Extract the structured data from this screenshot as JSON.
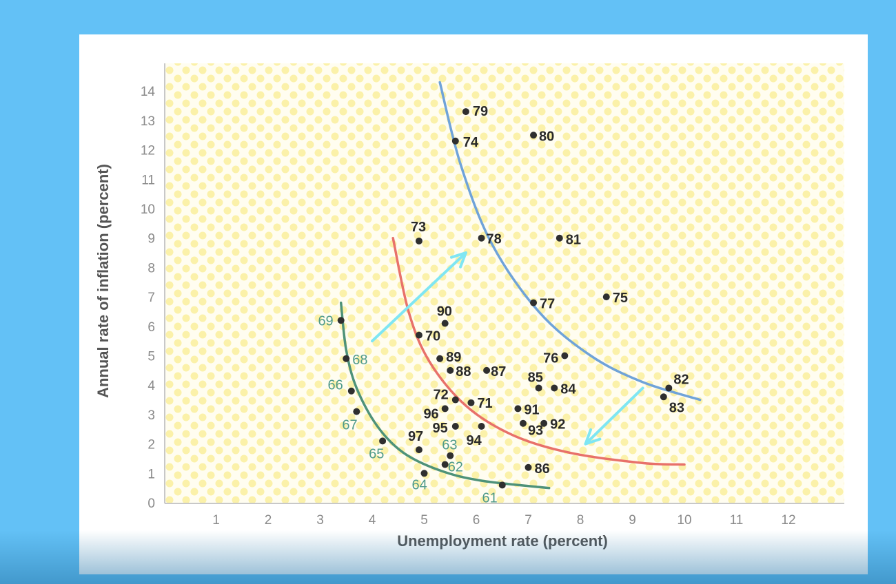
{
  "chart_data": {
    "type": "scatter",
    "xlabel": "Unemployment rate (percent)",
    "ylabel": "Annual rate of inflation (percent)",
    "xlim": [
      0,
      13
    ],
    "ylim": [
      0,
      15
    ],
    "x_ticks": [
      "1",
      "2",
      "3",
      "4",
      "5",
      "6",
      "7",
      "8",
      "9",
      "10",
      "11",
      "12"
    ],
    "y_ticks": [
      "0",
      "1",
      "2",
      "3",
      "4",
      "5",
      "6",
      "7",
      "8",
      "9",
      "10",
      "11",
      "12",
      "13",
      "14"
    ],
    "grid": false,
    "background": "dotted-yellow",
    "points": [
      {
        "label": "61",
        "x": 6.5,
        "y": 0.6,
        "style": "green"
      },
      {
        "label": "62",
        "x": 5.4,
        "y": 1.3,
        "style": "green"
      },
      {
        "label": "63",
        "x": 5.5,
        "y": 1.6,
        "style": "green"
      },
      {
        "label": "64",
        "x": 5.0,
        "y": 1.0,
        "style": "green"
      },
      {
        "label": "65",
        "x": 4.2,
        "y": 2.1,
        "style": "green"
      },
      {
        "label": "66",
        "x": 3.6,
        "y": 3.8,
        "style": "green"
      },
      {
        "label": "67",
        "x": 3.7,
        "y": 3.1,
        "style": "green"
      },
      {
        "label": "68",
        "x": 3.5,
        "y": 4.9,
        "style": "green"
      },
      {
        "label": "69",
        "x": 3.4,
        "y": 6.2,
        "style": "green"
      },
      {
        "label": "70",
        "x": 4.9,
        "y": 5.7,
        "style": "dark"
      },
      {
        "label": "71",
        "x": 5.9,
        "y": 3.4,
        "style": "dark"
      },
      {
        "label": "72",
        "x": 5.6,
        "y": 3.5,
        "style": "dark"
      },
      {
        "label": "73",
        "x": 4.9,
        "y": 8.9,
        "style": "dark"
      },
      {
        "label": "74",
        "x": 5.6,
        "y": 12.3,
        "style": "dark"
      },
      {
        "label": "75",
        "x": 8.5,
        "y": 7.0,
        "style": "dark"
      },
      {
        "label": "76",
        "x": 7.7,
        "y": 5.0,
        "style": "dark"
      },
      {
        "label": "77",
        "x": 7.1,
        "y": 6.8,
        "style": "dark"
      },
      {
        "label": "78",
        "x": 6.1,
        "y": 9.0,
        "style": "dark"
      },
      {
        "label": "79",
        "x": 5.8,
        "y": 13.3,
        "style": "dark"
      },
      {
        "label": "80",
        "x": 7.1,
        "y": 12.5,
        "style": "dark"
      },
      {
        "label": "81",
        "x": 7.6,
        "y": 9.0,
        "style": "dark"
      },
      {
        "label": "82",
        "x": 9.7,
        "y": 3.9,
        "style": "dark"
      },
      {
        "label": "83",
        "x": 9.6,
        "y": 3.6,
        "style": "dark"
      },
      {
        "label": "84",
        "x": 7.5,
        "y": 3.9,
        "style": "dark"
      },
      {
        "label": "85",
        "x": 7.2,
        "y": 3.9,
        "style": "dark"
      },
      {
        "label": "86",
        "x": 7.0,
        "y": 1.2,
        "style": "dark"
      },
      {
        "label": "87",
        "x": 6.2,
        "y": 4.5,
        "style": "dark"
      },
      {
        "label": "88",
        "x": 5.5,
        "y": 4.5,
        "style": "dark"
      },
      {
        "label": "89",
        "x": 5.3,
        "y": 4.9,
        "style": "dark"
      },
      {
        "label": "90",
        "x": 5.4,
        "y": 6.1,
        "style": "dark"
      },
      {
        "label": "91",
        "x": 6.8,
        "y": 3.2,
        "style": "dark"
      },
      {
        "label": "92",
        "x": 7.3,
        "y": 2.7,
        "style": "dark"
      },
      {
        "label": "93",
        "x": 6.9,
        "y": 2.7,
        "style": "dark"
      },
      {
        "label": "94",
        "x": 6.1,
        "y": 2.6,
        "style": "dark"
      },
      {
        "label": "95",
        "x": 5.6,
        "y": 2.6,
        "style": "dark"
      },
      {
        "label": "96",
        "x": 5.4,
        "y": 3.2,
        "style": "dark"
      },
      {
        "label": "97",
        "x": 4.9,
        "y": 1.8,
        "style": "dark"
      }
    ],
    "curves": [
      {
        "color": "#4e9279",
        "points": [
          [
            3.4,
            6.8
          ],
          [
            3.5,
            5.2
          ],
          [
            3.7,
            3.9
          ],
          [
            4.1,
            2.6
          ],
          [
            4.6,
            1.7
          ],
          [
            5.3,
            1.1
          ],
          [
            6.1,
            0.75
          ],
          [
            7.4,
            0.5
          ]
        ]
      },
      {
        "color": "#e8716a",
        "points": [
          [
            4.4,
            9.0
          ],
          [
            4.7,
            6.5
          ],
          [
            5.1,
            4.8
          ],
          [
            5.8,
            3.3
          ],
          [
            6.7,
            2.3
          ],
          [
            7.8,
            1.7
          ],
          [
            9.2,
            1.35
          ],
          [
            10.0,
            1.3
          ]
        ]
      },
      {
        "color": "#6fa3d9",
        "points": [
          [
            5.3,
            14.3
          ],
          [
            5.7,
            11.5
          ],
          [
            6.3,
            8.8
          ],
          [
            7.2,
            6.5
          ],
          [
            8.2,
            5.0
          ],
          [
            9.2,
            4.1
          ],
          [
            10.3,
            3.5
          ]
        ]
      }
    ],
    "arrows": [
      {
        "color": "#7fe6f3",
        "from": [
          4.0,
          5.5
        ],
        "to": [
          5.8,
          8.5
        ]
      },
      {
        "color": "#7fe6f3",
        "from": [
          9.2,
          3.9
        ],
        "to": [
          8.1,
          2.0
        ]
      }
    ],
    "colors": {
      "background": "#63c1f6",
      "card": "#ffffff",
      "plot_bg": "#fffdf0",
      "dot_pattern": "#fbf1a9",
      "point": "#2f2f2f",
      "green_label": "#4f9a8a"
    }
  }
}
